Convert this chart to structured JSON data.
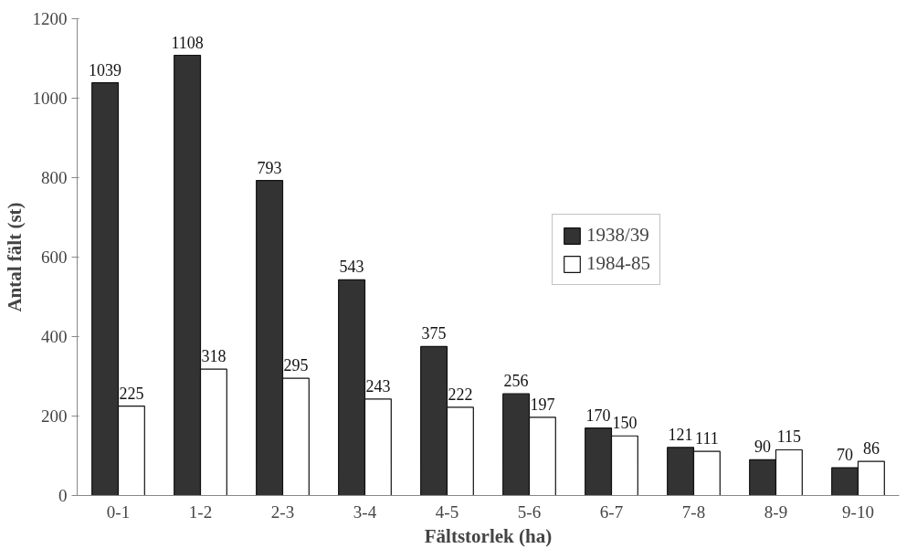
{
  "chart_data": {
    "type": "bar",
    "xlabel": "Fältstorlek (ha)",
    "ylabel": "Antal fält (st)",
    "categories": [
      "0-1",
      "1-2",
      "2-3",
      "3-4",
      "4-5",
      "5-6",
      "6-7",
      "7-8",
      "8-9",
      "9-10"
    ],
    "series": [
      {
        "name": "1938/39",
        "color": "#333333",
        "values": [
          1039,
          1108,
          793,
          543,
          375,
          256,
          170,
          121,
          90,
          70
        ]
      },
      {
        "name": "1984-85",
        "color": "#ffffff",
        "values": [
          225,
          318,
          295,
          243,
          222,
          197,
          150,
          111,
          115,
          86
        ]
      }
    ],
    "ylim": [
      0,
      1200
    ],
    "yticks": [
      0,
      200,
      400,
      600,
      800,
      1000,
      1200
    ],
    "data_labels": true,
    "legend": "right",
    "grid": false
  }
}
